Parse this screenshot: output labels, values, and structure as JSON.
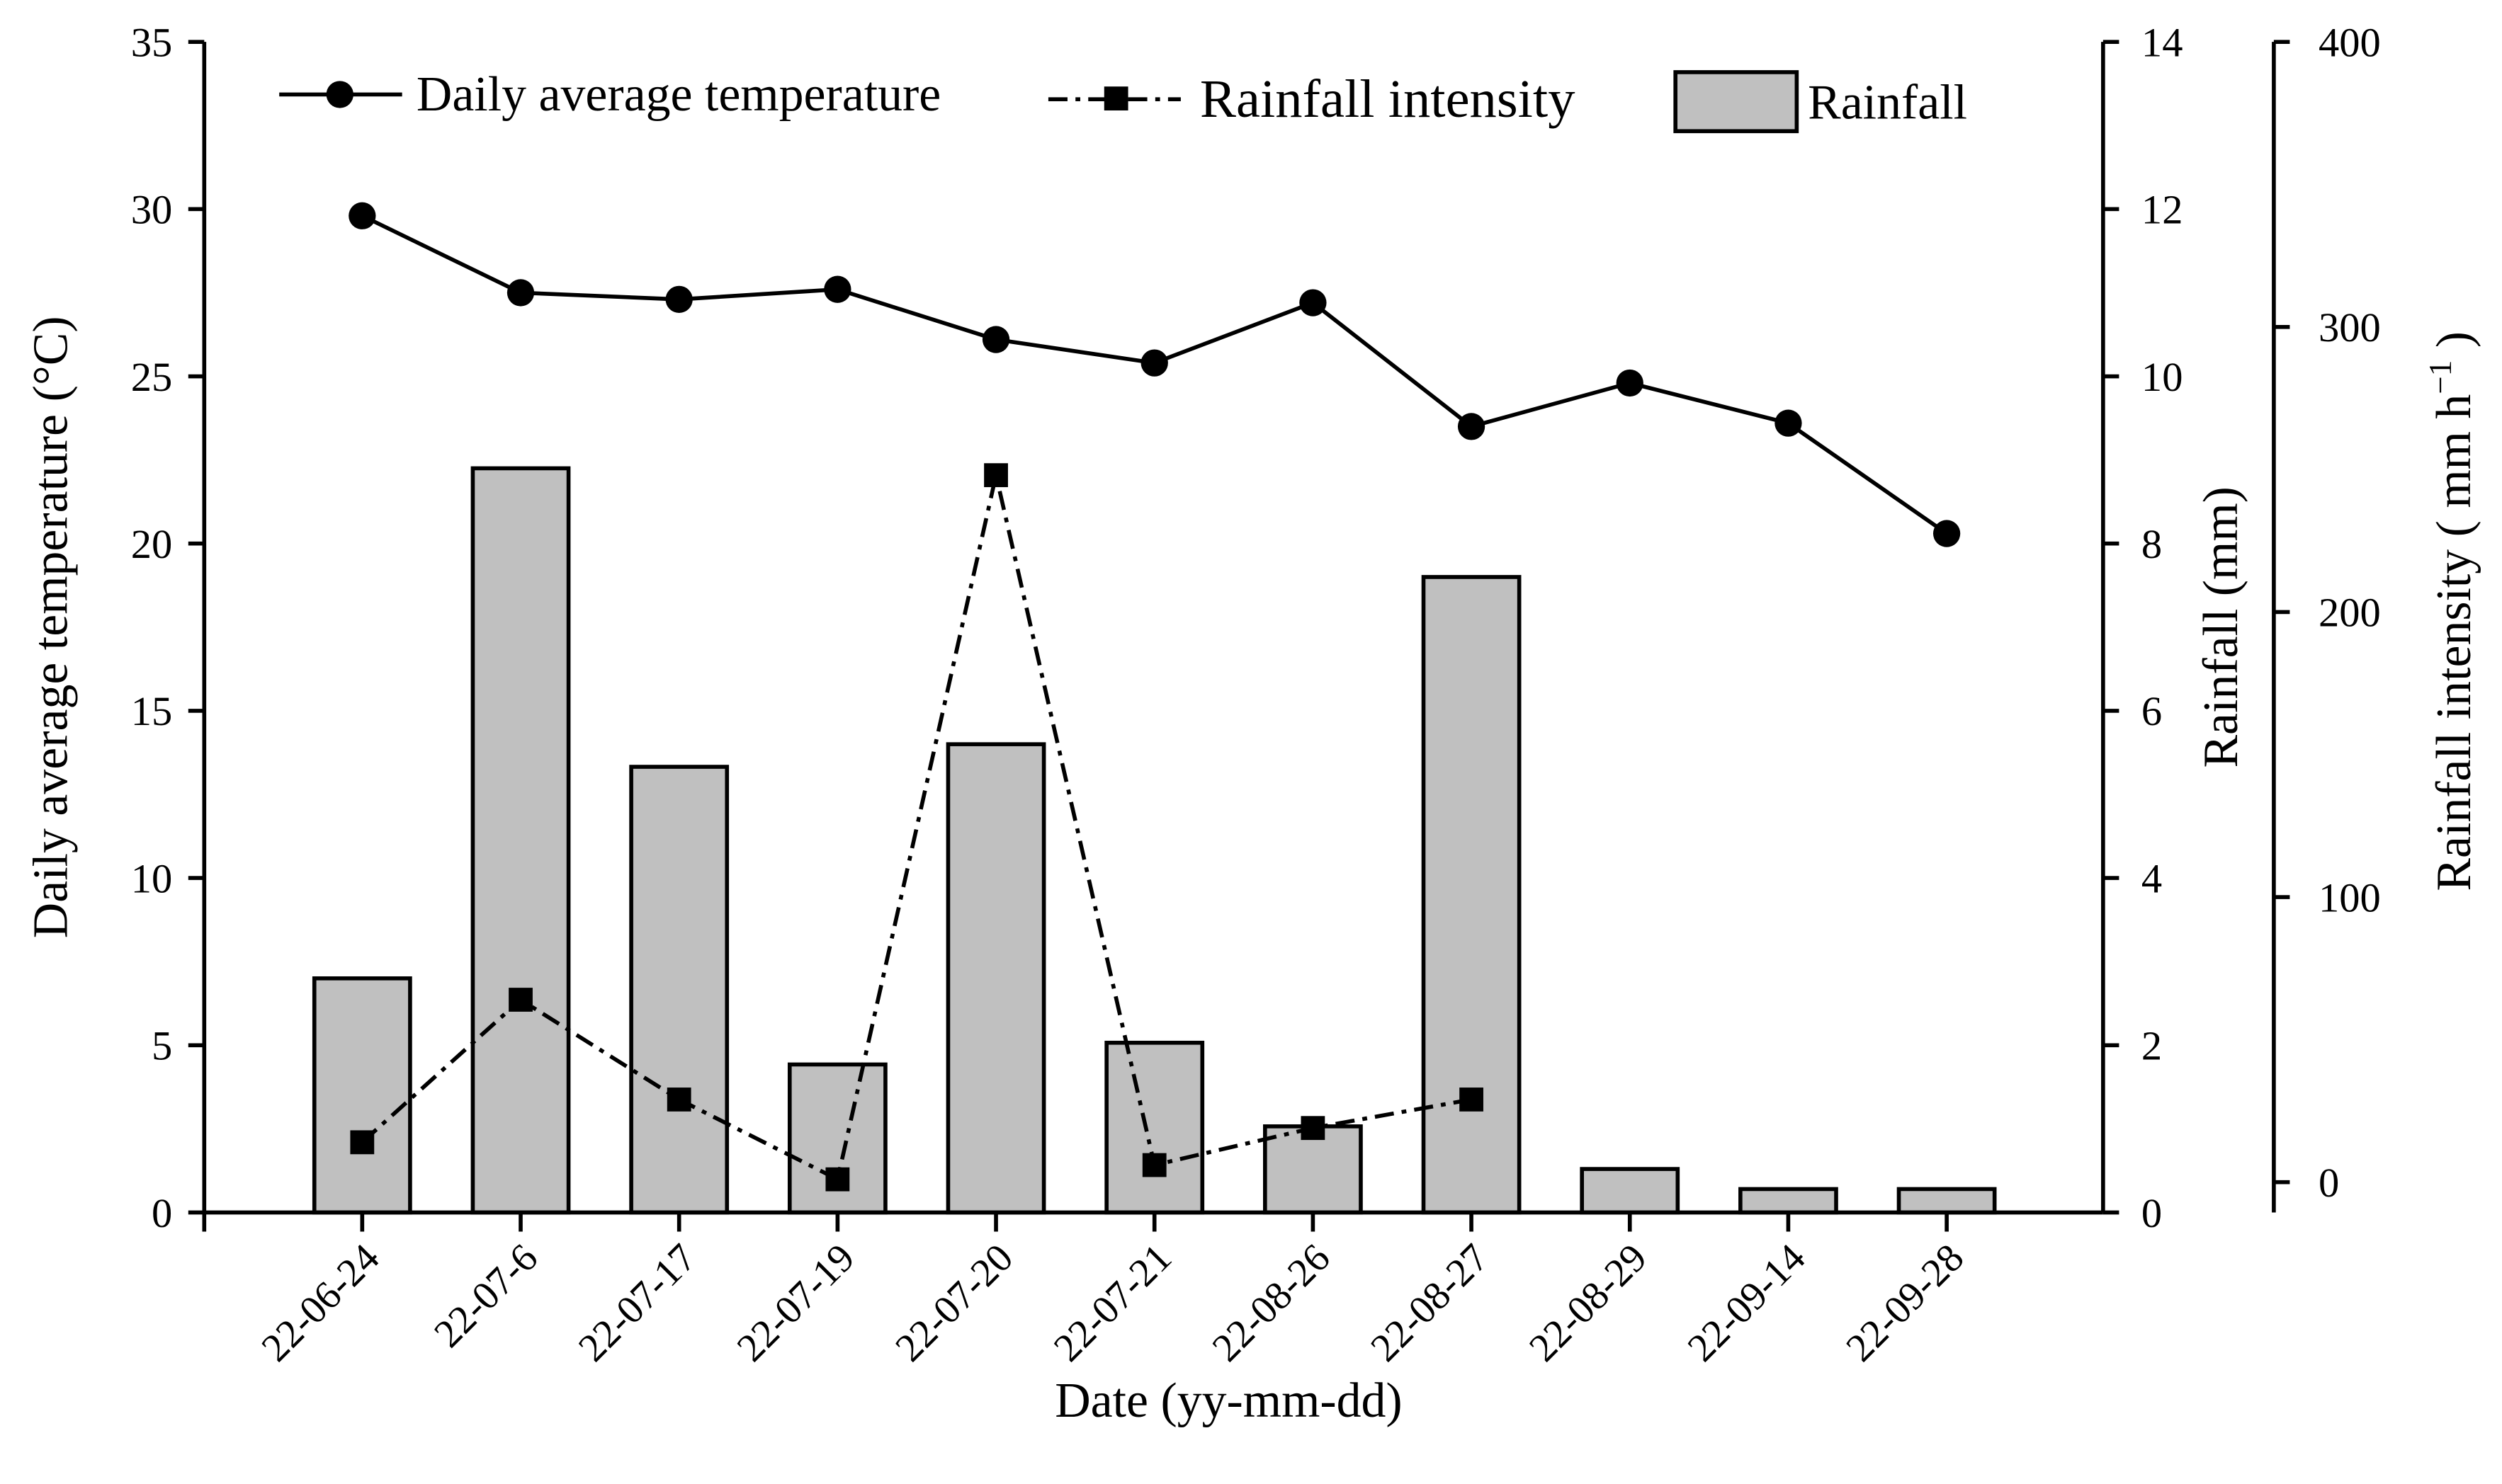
{
  "chart_data": {
    "type": "bar+line",
    "xlabel": "Date (yy-mm-dd)",
    "categories": [
      "22-06-24",
      "22-07-6",
      "22-07-17",
      "22-07-19",
      "22-07-20",
      "22-07-21",
      "22-08-26",
      "22-08-27",
      "22-08-29",
      "22-09-14",
      "22-09-28"
    ],
    "axes": {
      "left": {
        "label": "Daily average temperature (°C)",
        "ylim": [
          0,
          35
        ],
        "ticks": [
          0,
          5,
          10,
          15,
          20,
          25,
          30,
          35
        ]
      },
      "right1": {
        "label": "Rainfall (mm)",
        "ylim": [
          0,
          14
        ],
        "ticks": [
          0,
          2,
          4,
          6,
          8,
          10,
          12,
          14
        ]
      },
      "right2": {
        "label": "Rainfall intensity ( mm h",
        "label_sup": "−1",
        "label_end": " )",
        "ylim": [
          0,
          400
        ],
        "ticks": [
          0,
          100,
          200,
          300,
          400
        ]
      }
    },
    "series": [
      {
        "name": "Daily average temperature",
        "type": "line",
        "marker": "circle",
        "axis": "left",
        "values": [
          29.8,
          27.5,
          27.3,
          27.6,
          26.1,
          25.4,
          27.2,
          23.5,
          24.8,
          23.6,
          20.3
        ]
      },
      {
        "name": "Rainfall intensity",
        "type": "line",
        "marker": "square",
        "dash": "dash-dot",
        "axis": "right2",
        "values": [
          14,
          64,
          29,
          1,
          248,
          6,
          19,
          29,
          null,
          null,
          null
        ]
      },
      {
        "name": "Rainfall",
        "type": "bar",
        "axis": "right1",
        "color": "#c0c0c0",
        "values": [
          2.8,
          8.9,
          5.33,
          1.77,
          5.6,
          2.03,
          1.03,
          7.6,
          0.52,
          0.28,
          0.28
        ]
      }
    ],
    "legend": {
      "placement": "top",
      "entries": [
        "Daily average temperature",
        "Rainfall intensity",
        "Rainfall"
      ]
    },
    "grid": false
  }
}
